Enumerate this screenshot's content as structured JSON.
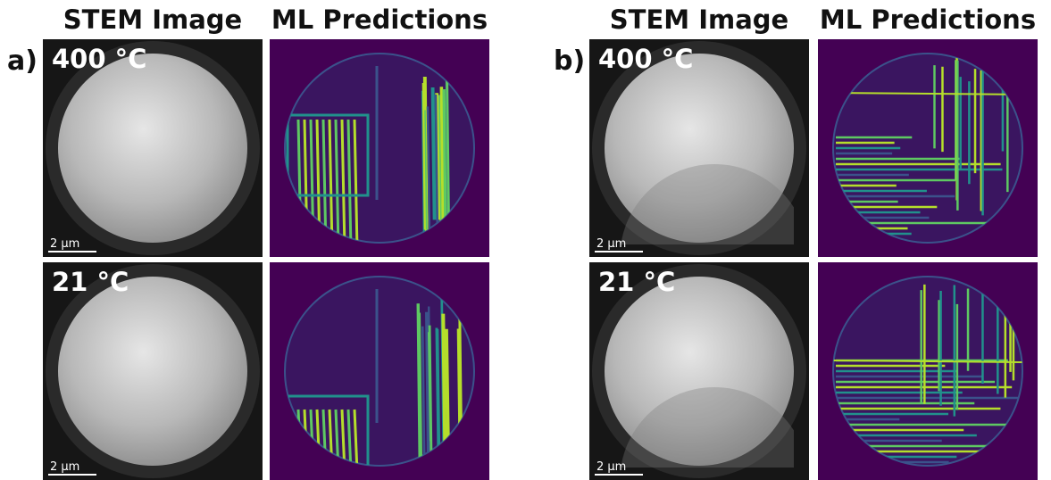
{
  "panels": [
    {
      "label": "a)",
      "columns": [
        "STEM Image",
        "ML Predictions"
      ],
      "rows": [
        {
          "temperature": "400 °C",
          "scale_bar": "2 µm"
        },
        {
          "temperature": "21 °C",
          "scale_bar": "2 µm"
        }
      ]
    },
    {
      "label": "b)",
      "columns": [
        "STEM Image",
        "ML Predictions"
      ],
      "rows": [
        {
          "temperature": "400 °C",
          "scale_bar": "2 µm"
        },
        {
          "temperature": "21 °C",
          "scale_bar": "2 µm"
        }
      ]
    }
  ]
}
